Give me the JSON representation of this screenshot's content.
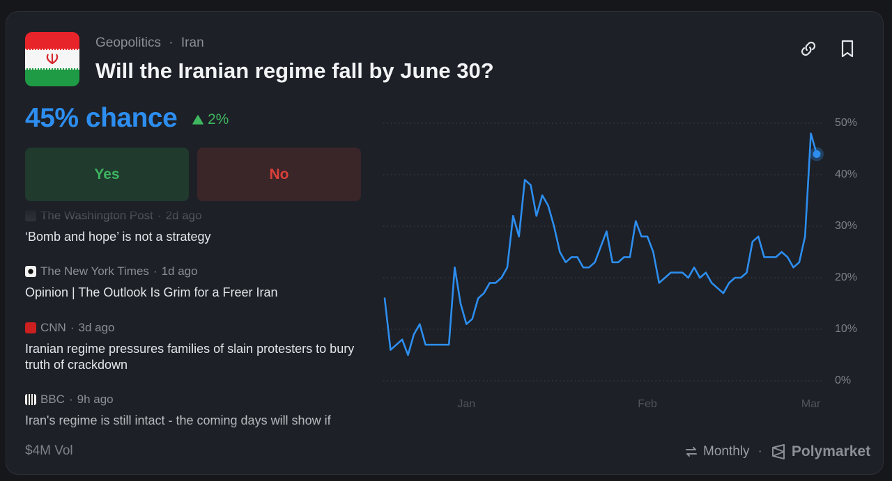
{
  "header": {
    "category": "Geopolitics",
    "separator": "·",
    "topic": "Iran",
    "title": "Will the Iranian regime fall by June 30?"
  },
  "odds": {
    "chance": "45% chance",
    "change": "2%"
  },
  "buttons": [
    "Yes",
    "No"
  ],
  "news": [
    {
      "source": "The Washington Post",
      "time": "2d ago",
      "headline": "‘Bomb and hope’ is not a strategy"
    },
    {
      "source": "The New York Times",
      "time": "1d ago",
      "headline": "Opinion | The Outlook Is Grim for a Freer Iran"
    },
    {
      "source": "CNN",
      "time": "3d ago",
      "headline": "Iranian regime pressures families of slain protesters to bury truth of crackdown"
    },
    {
      "source": "BBC",
      "time": "9h ago",
      "headline": "Iran's regime is still intact - the coming days will show if"
    }
  ],
  "footer": {
    "volume": "$4M Vol",
    "interval": "Monthly",
    "brand": "Polymarket"
  },
  "chart_data": {
    "type": "line",
    "color": "#2d8ef0",
    "categories": [
      null,
      null,
      null,
      null,
      null,
      null,
      null,
      null,
      null,
      null,
      null,
      null,
      null,
      null,
      "Jan",
      null,
      null,
      null,
      null,
      null,
      null,
      null,
      null,
      null,
      null,
      null,
      null,
      null,
      null,
      null,
      null,
      null,
      null,
      null,
      null,
      null,
      null,
      null,
      null,
      null,
      null,
      null,
      null,
      null,
      null,
      "Feb",
      null,
      null,
      null,
      null,
      null,
      null,
      null,
      null,
      null,
      null,
      null,
      null,
      null,
      null,
      null,
      null,
      null,
      null,
      null,
      null,
      null,
      null,
      null,
      null,
      null,
      null,
      null,
      "Mar",
      null
    ],
    "values": [
      16,
      6,
      7,
      8,
      5,
      9,
      11,
      7,
      7,
      7,
      7,
      7,
      22,
      15,
      11,
      12,
      16,
      17,
      19,
      19,
      20,
      22,
      32,
      28,
      39,
      38,
      32,
      36,
      34,
      30,
      25,
      23,
      24,
      24,
      22,
      22,
      23,
      26,
      29,
      23,
      23,
      24,
      24,
      31,
      28,
      28,
      25,
      19,
      20,
      21,
      21,
      21,
      20,
      22,
      20,
      21,
      19,
      18,
      17,
      19,
      20,
      20,
      21,
      27,
      28,
      24,
      24,
      24,
      25,
      24,
      22,
      23,
      28,
      48,
      44
    ],
    "ylim": [
      0,
      50
    ],
    "yticks": [
      {
        "value": 0,
        "label": "0%"
      },
      {
        "value": 10,
        "label": "10%"
      },
      {
        "value": 20,
        "label": "20%"
      },
      {
        "value": 30,
        "label": "30%"
      },
      {
        "value": 40,
        "label": "40%"
      },
      {
        "value": 50,
        "label": "50%"
      }
    ],
    "grid": true
  }
}
